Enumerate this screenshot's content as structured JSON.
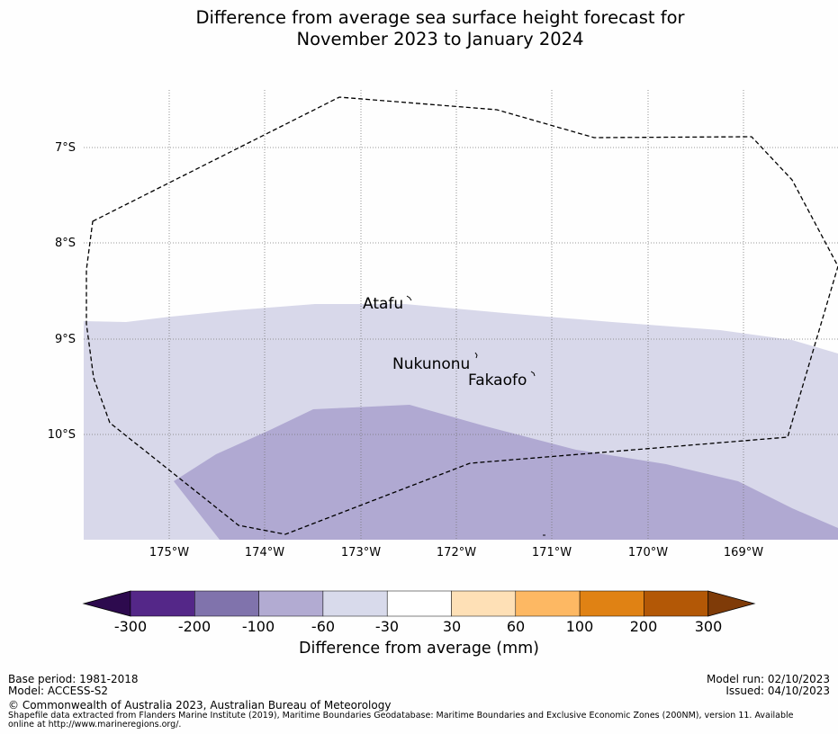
{
  "title": {
    "line1": "Difference from average sea surface height forecast for",
    "line2": "November 2023 to January 2024"
  },
  "map": {
    "lat_labels": [
      "7°S",
      "8°S",
      "9°S",
      "10°S"
    ],
    "lon_labels": [
      "175°W",
      "174°W",
      "173°W",
      "172°W",
      "171°W",
      "170°W",
      "169°W"
    ],
    "places": [
      "Atafu",
      "Nukunonu",
      "Fakaofo"
    ],
    "eez_boundary": "200NM Exclusive Economic Zone",
    "field_colors": {
      "light_lavender": "#d8d8ea",
      "lavender": "#b0a9d2"
    }
  },
  "colorbar": {
    "label": "Difference from average (mm)",
    "ticks": [
      "-300",
      "-200",
      "-100",
      "-60",
      "-30",
      "30",
      "60",
      "100",
      "200",
      "300"
    ],
    "colors": [
      "#2d0a4e",
      "#542788",
      "#8073ac",
      "#b2abd2",
      "#d8daeb",
      "#ffffff",
      "#fee0b6",
      "#fdb863",
      "#e08214",
      "#b35806",
      "#7f3b08"
    ]
  },
  "footer": {
    "base_period": "Base period: 1981-2018",
    "model": "Model: ACCESS-S2",
    "model_run": "Model run: 02/10/2023",
    "issued": "Issued: 04/10/2023",
    "copyright": "© Commonwealth of Australia 2023, Australian Bureau of Meteorology",
    "shapefile": "Shapefile data extracted from Flanders Marine Institute (2019), Maritime Boundaries Geodatabase: Maritime Boundaries and Exclusive Economic Zones (200NM), version 11. Available online at http://www.marineregions.org/."
  }
}
